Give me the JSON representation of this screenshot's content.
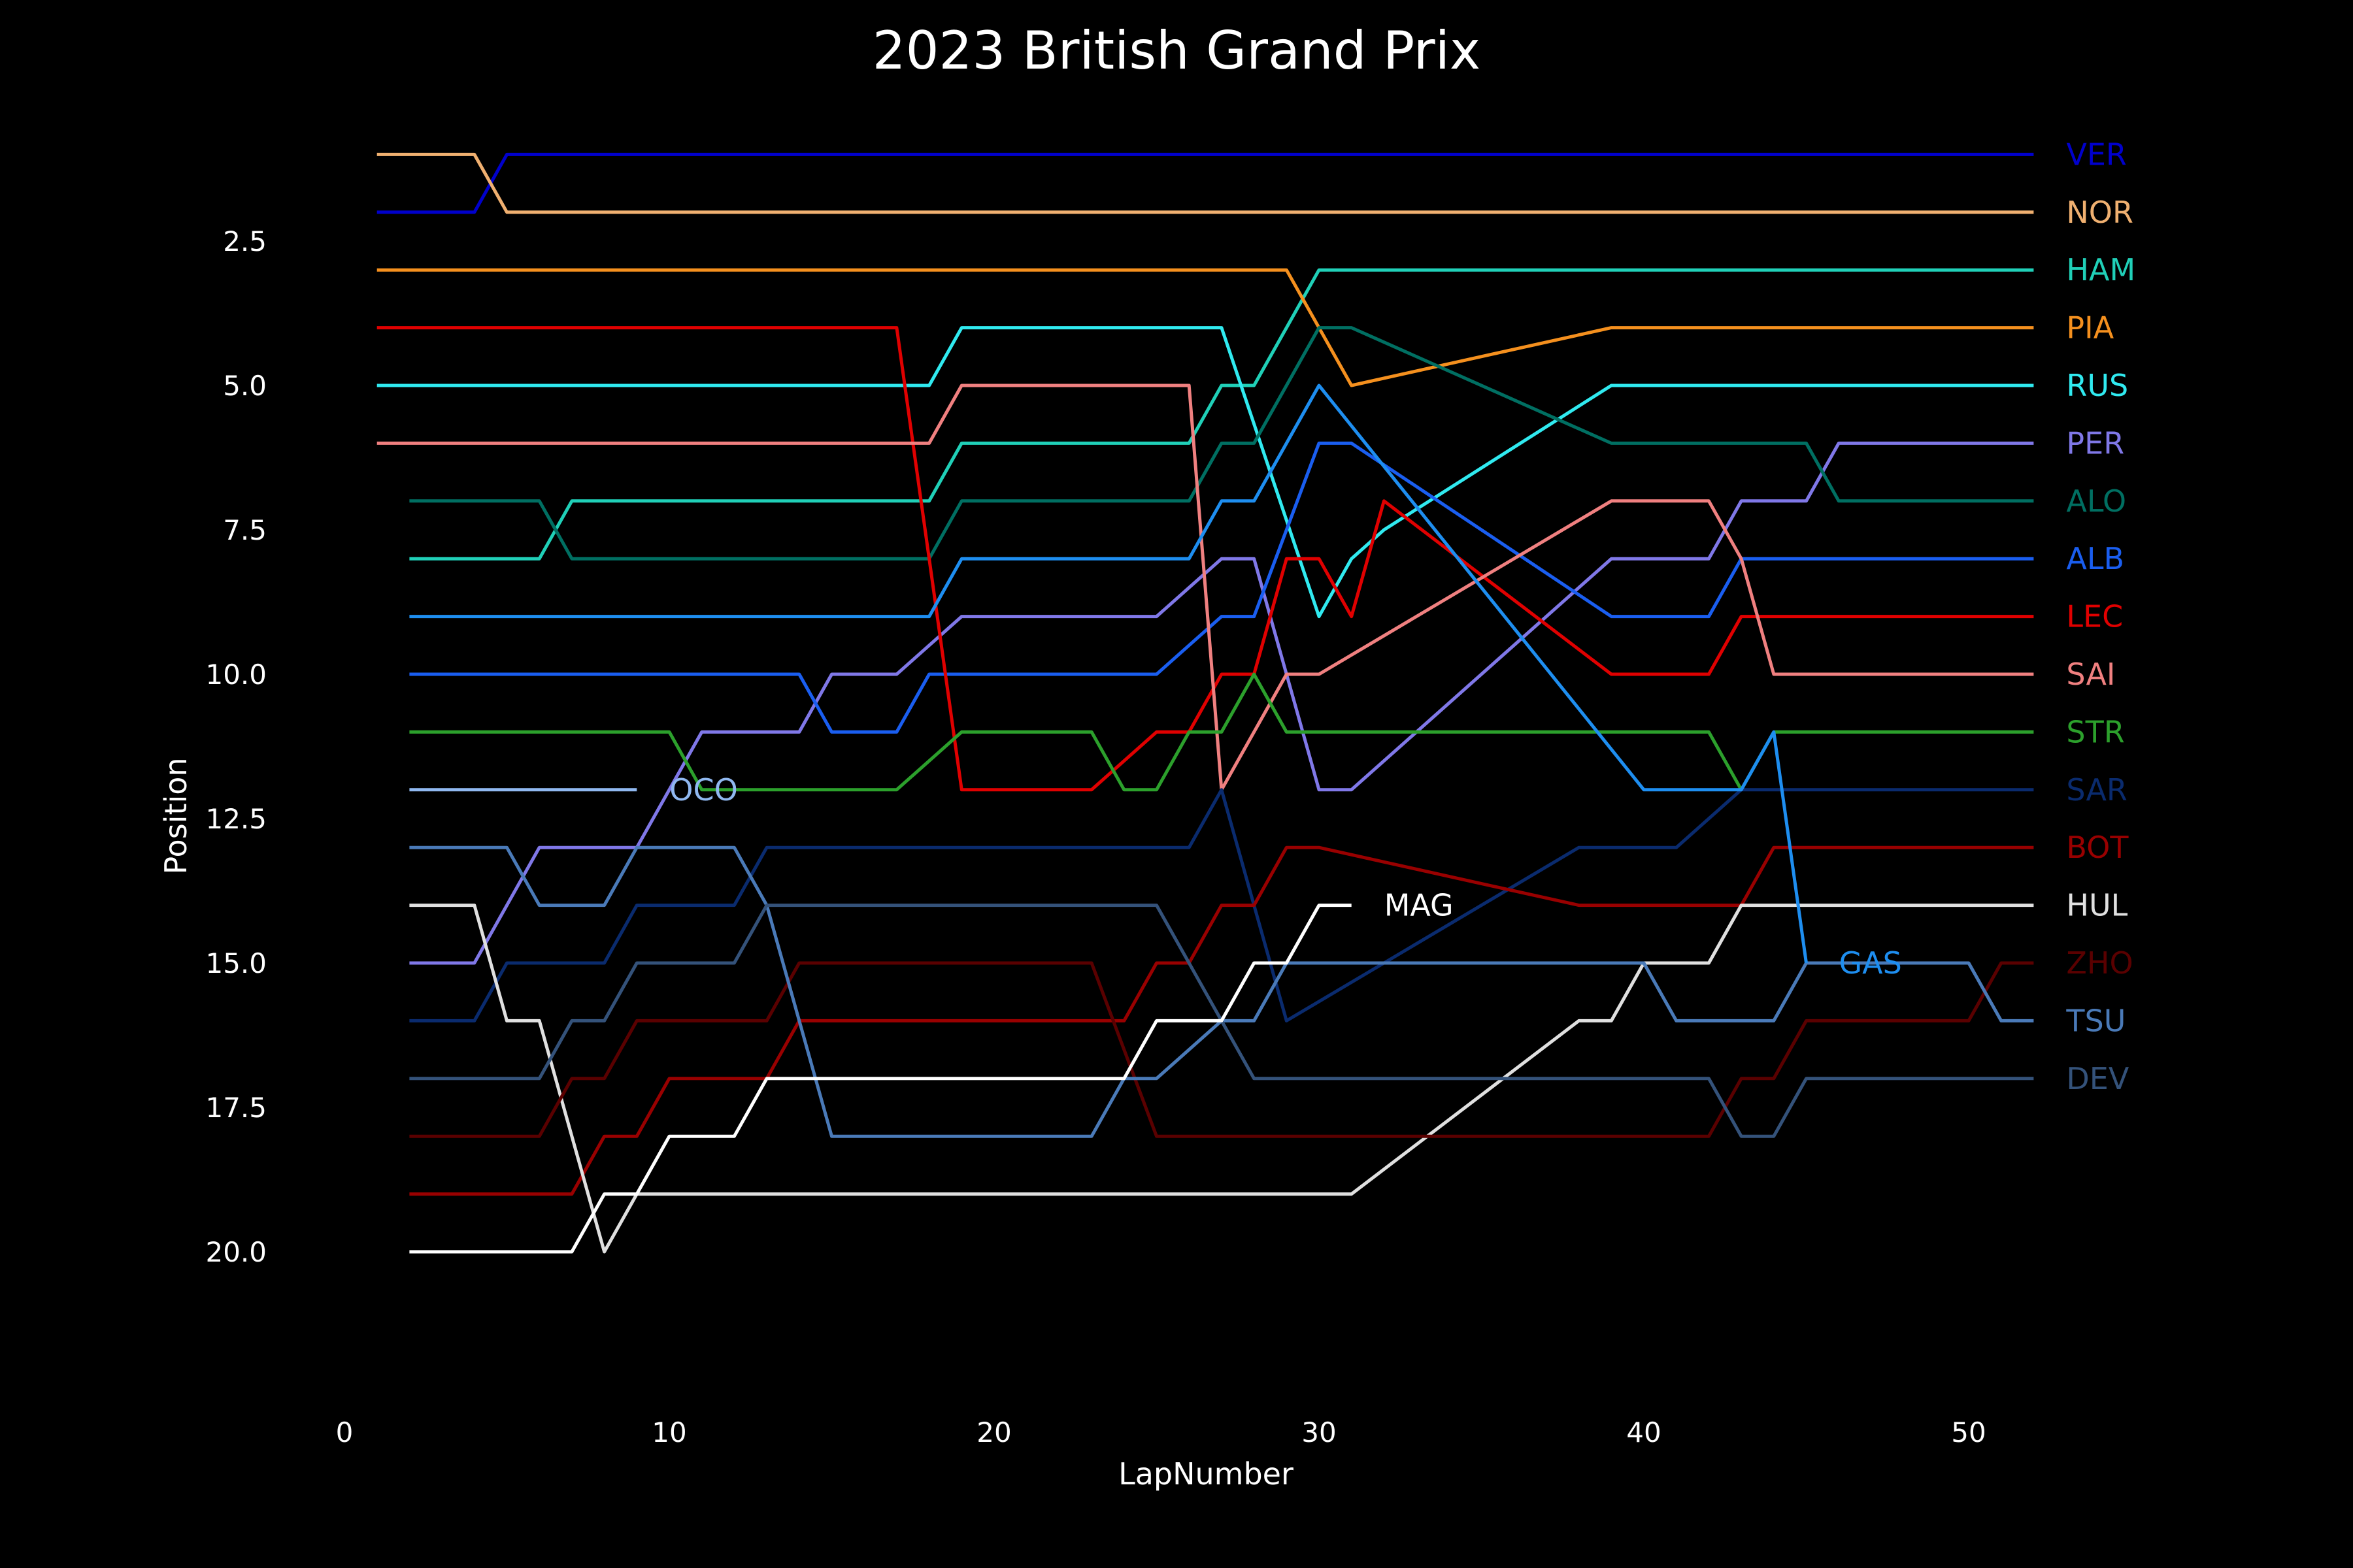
{
  "chart_data": {
    "type": "line",
    "title": "2023 British Grand Prix",
    "xlabel": "LapNumber",
    "ylabel": "Position",
    "xlim": [
      0,
      52
    ],
    "ylim": [
      21.2,
      0
    ],
    "y_inverted": true,
    "grid": false,
    "legend": "none",
    "background": "#000000",
    "xticks": [
      0,
      10,
      20,
      30,
      40,
      50
    ],
    "xtick_labels": [
      "0",
      "10",
      "20",
      "30",
      "40",
      "50"
    ],
    "yticks": [
      2.5,
      5.0,
      7.5,
      10.0,
      12.5,
      15.0,
      17.5,
      20.0
    ],
    "ytick_labels": [
      "2.5",
      "5.0",
      "7.5",
      "10.0",
      "12.5",
      "15.0",
      "17.5",
      "20.0"
    ],
    "series": [
      {
        "name": "VER",
        "color": "#0000cc",
        "label_pos": "end",
        "points": [
          [
            1,
            2
          ],
          [
            4,
            2
          ],
          [
            5,
            1
          ],
          [
            52,
            1
          ]
        ]
      },
      {
        "name": "NOR",
        "color": "#f0b070",
        "label_pos": "end",
        "points": [
          [
            1,
            1
          ],
          [
            4,
            1
          ],
          [
            5,
            2
          ],
          [
            52,
            2
          ]
        ]
      },
      {
        "name": "HAM",
        "color": "#20d0b8",
        "label_pos": "end",
        "points": [
          [
            2,
            8
          ],
          [
            6,
            8
          ],
          [
            7,
            7
          ],
          [
            18,
            7
          ],
          [
            19,
            6
          ],
          [
            26,
            6
          ],
          [
            27,
            5
          ],
          [
            28,
            5
          ],
          [
            29,
            4
          ],
          [
            30,
            3
          ],
          [
            52,
            3
          ]
        ]
      },
      {
        "name": "PIA",
        "color": "#f5901e",
        "label_pos": "end",
        "points": [
          [
            1,
            3
          ],
          [
            29,
            3
          ],
          [
            31,
            5
          ],
          [
            39,
            4
          ],
          [
            52,
            4
          ]
        ]
      },
      {
        "name": "RUS",
        "color": "#30eaf0",
        "label_pos": "end",
        "points": [
          [
            1,
            5
          ],
          [
            18,
            5
          ],
          [
            19,
            4
          ],
          [
            27,
            4
          ],
          [
            30,
            9
          ],
          [
            31,
            8
          ],
          [
            32,
            7.5
          ],
          [
            39,
            5
          ],
          [
            52,
            5
          ]
        ]
      },
      {
        "name": "PER",
        "color": "#8078e8",
        "label_pos": "end",
        "points": [
          [
            2,
            15
          ],
          [
            4,
            15
          ],
          [
            6,
            13
          ],
          [
            9,
            13
          ],
          [
            11,
            11
          ],
          [
            14,
            11
          ],
          [
            15,
            10
          ],
          [
            17,
            10
          ],
          [
            19,
            9
          ],
          [
            25,
            9
          ],
          [
            27,
            8
          ],
          [
            28,
            8
          ],
          [
            30,
            12
          ],
          [
            31,
            12
          ],
          [
            39,
            8
          ],
          [
            42,
            8
          ],
          [
            43,
            7
          ],
          [
            45,
            7
          ],
          [
            46,
            6
          ],
          [
            52,
            6
          ]
        ]
      },
      {
        "name": "ALO",
        "color": "#006f62",
        "label_pos": "end",
        "points": [
          [
            2,
            7
          ],
          [
            6,
            7
          ],
          [
            7,
            8
          ],
          [
            17,
            8
          ],
          [
            18,
            8
          ],
          [
            19,
            7
          ],
          [
            26,
            7
          ],
          [
            27,
            6
          ],
          [
            28,
            6
          ],
          [
            30,
            4
          ],
          [
            31,
            4
          ],
          [
            39,
            6
          ],
          [
            45,
            6
          ],
          [
            46,
            7
          ],
          [
            52,
            7
          ]
        ]
      },
      {
        "name": "ALB",
        "color": "#1a5ef0",
        "label_pos": "end",
        "points": [
          [
            2,
            10
          ],
          [
            14,
            10
          ],
          [
            15,
            11
          ],
          [
            17,
            11
          ],
          [
            18,
            10
          ],
          [
            19,
            10
          ],
          [
            25,
            10
          ],
          [
            27,
            9
          ],
          [
            28,
            9
          ],
          [
            30,
            6
          ],
          [
            31,
            6
          ],
          [
            39,
            9
          ],
          [
            42,
            9
          ],
          [
            43,
            8
          ],
          [
            52,
            8
          ]
        ]
      },
      {
        "name": "LEC",
        "color": "#e00000",
        "label_pos": "end",
        "points": [
          [
            1,
            4
          ],
          [
            17,
            4
          ],
          [
            19,
            12
          ],
          [
            23,
            12
          ],
          [
            25,
            11
          ],
          [
            26,
            11
          ],
          [
            27,
            10
          ],
          [
            28,
            10
          ],
          [
            29,
            8
          ],
          [
            30,
            8
          ],
          [
            31,
            9
          ],
          [
            32,
            7
          ],
          [
            39,
            10
          ],
          [
            42,
            10
          ],
          [
            43,
            9
          ],
          [
            52,
            9
          ]
        ]
      },
      {
        "name": "SAI",
        "color": "#f08080",
        "label_pos": "end",
        "points": [
          [
            1,
            6
          ],
          [
            18,
            6
          ],
          [
            19,
            5
          ],
          [
            26,
            5
          ],
          [
            27,
            12
          ],
          [
            29,
            10
          ],
          [
            30,
            10
          ],
          [
            39,
            7
          ],
          [
            42,
            7
          ],
          [
            43,
            8
          ],
          [
            44,
            10
          ],
          [
            52,
            10
          ]
        ]
      },
      {
        "name": "STR",
        "color": "#2ca02c",
        "label_pos": "end",
        "points": [
          [
            2,
            11
          ],
          [
            10,
            11
          ],
          [
            11,
            12
          ],
          [
            17,
            12
          ],
          [
            19,
            11
          ],
          [
            23,
            11
          ],
          [
            24,
            12
          ],
          [
            25,
            12
          ],
          [
            26,
            11
          ],
          [
            27,
            11
          ],
          [
            28,
            10
          ],
          [
            29,
            11
          ],
          [
            42,
            11
          ],
          [
            43,
            12
          ],
          [
            44,
            11
          ],
          [
            52,
            11
          ]
        ]
      },
      {
        "name": "SAR",
        "color": "#0a2b6e",
        "label_pos": "end",
        "points": [
          [
            2,
            16
          ],
          [
            4,
            16
          ],
          [
            5,
            15
          ],
          [
            8,
            15
          ],
          [
            9,
            14
          ],
          [
            12,
            14
          ],
          [
            13,
            13
          ],
          [
            26,
            13
          ],
          [
            27,
            12
          ],
          [
            29,
            16
          ],
          [
            38,
            13
          ],
          [
            41,
            13
          ],
          [
            43,
            12
          ],
          [
            52,
            12
          ]
        ]
      },
      {
        "name": "BOT",
        "color": "#990000",
        "label_pos": "end",
        "points": [
          [
            2,
            19
          ],
          [
            7,
            19
          ],
          [
            8,
            18
          ],
          [
            9,
            18
          ],
          [
            10,
            17
          ],
          [
            13,
            17
          ],
          [
            14,
            16
          ],
          [
            24,
            16
          ],
          [
            25,
            15
          ],
          [
            26,
            15
          ],
          [
            27,
            14
          ],
          [
            28,
            14
          ],
          [
            29,
            13
          ],
          [
            30,
            13
          ],
          [
            38,
            14
          ],
          [
            43,
            14
          ],
          [
            44,
            13
          ],
          [
            52,
            13
          ]
        ]
      },
      {
        "name": "HUL",
        "color": "#e0e0e0",
        "label_pos": "end",
        "points": [
          [
            2,
            14
          ],
          [
            4,
            14
          ],
          [
            5,
            16
          ],
          [
            6,
            16
          ],
          [
            8,
            20
          ],
          [
            9,
            19
          ],
          [
            31,
            19
          ],
          [
            38,
            16
          ],
          [
            39,
            16
          ],
          [
            40,
            15
          ],
          [
            42,
            15
          ],
          [
            43,
            14
          ],
          [
            52,
            14
          ]
        ]
      },
      {
        "name": "ZHO",
        "color": "#5a0000",
        "label_pos": "end",
        "points": [
          [
            2,
            18
          ],
          [
            6,
            18
          ],
          [
            7,
            17
          ],
          [
            8,
            17
          ],
          [
            9,
            16
          ],
          [
            13,
            16
          ],
          [
            14,
            15
          ],
          [
            23,
            15
          ],
          [
            25,
            18
          ],
          [
            42,
            18
          ],
          [
            43,
            17
          ],
          [
            44,
            17
          ],
          [
            45,
            16
          ],
          [
            50,
            16
          ],
          [
            51,
            15
          ],
          [
            52,
            15
          ]
        ]
      },
      {
        "name": "TSU",
        "color": "#4a7ab8",
        "label_pos": "end",
        "points": [
          [
            2,
            13
          ],
          [
            5,
            13
          ],
          [
            6,
            14
          ],
          [
            8,
            14
          ],
          [
            9,
            13
          ],
          [
            12,
            13
          ],
          [
            13,
            14
          ],
          [
            15,
            18
          ],
          [
            23,
            18
          ],
          [
            24,
            17
          ],
          [
            25,
            17
          ],
          [
            27,
            16
          ],
          [
            28,
            16
          ],
          [
            29,
            15
          ],
          [
            40,
            15
          ],
          [
            41,
            16
          ],
          [
            44,
            16
          ],
          [
            45,
            15
          ],
          [
            50,
            15
          ],
          [
            51,
            16
          ],
          [
            52,
            16
          ]
        ]
      },
      {
        "name": "DEV",
        "color": "#34527a",
        "label_pos": "end",
        "points": [
          [
            2,
            17
          ],
          [
            6,
            17
          ],
          [
            7,
            16
          ],
          [
            8,
            16
          ],
          [
            9,
            15
          ],
          [
            12,
            15
          ],
          [
            13,
            14
          ],
          [
            25,
            14
          ],
          [
            27,
            16
          ],
          [
            28,
            17
          ],
          [
            42,
            17
          ],
          [
            43,
            18
          ],
          [
            44,
            18
          ],
          [
            45,
            17
          ],
          [
            52,
            17
          ]
        ]
      },
      {
        "name": "OCO",
        "color": "#90b8f0",
        "label_pos": "end",
        "points": [
          [
            2,
            12
          ],
          [
            9,
            12
          ]
        ]
      },
      {
        "name": "MAG",
        "color": "#ffffff",
        "label_pos": "end",
        "points": [
          [
            2,
            20
          ],
          [
            7,
            20
          ],
          [
            8,
            19
          ],
          [
            9,
            19
          ],
          [
            10,
            18
          ],
          [
            12,
            18
          ],
          [
            13,
            17
          ],
          [
            24,
            17
          ],
          [
            25,
            16
          ],
          [
            27,
            16
          ],
          [
            28,
            15
          ],
          [
            29,
            15
          ],
          [
            30,
            14
          ],
          [
            31,
            14
          ]
        ]
      },
      {
        "name": "GAS",
        "color": "#1e8ef0",
        "label_pos": "end",
        "points": [
          [
            2,
            9
          ],
          [
            18,
            9
          ],
          [
            19,
            8
          ],
          [
            26,
            8
          ],
          [
            27,
            7
          ],
          [
            28,
            7
          ],
          [
            30,
            5
          ],
          [
            40,
            12
          ],
          [
            43,
            12
          ],
          [
            44,
            11
          ],
          [
            45,
            15
          ]
        ]
      }
    ]
  }
}
